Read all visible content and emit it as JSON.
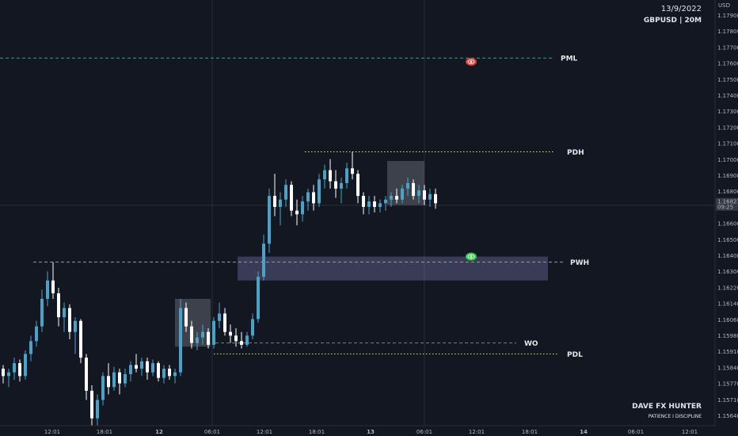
{
  "header": {
    "date": "13/9/2022",
    "symbol": "GBPUSD | 20M"
  },
  "branding": {
    "name": "DAVE FX HUNTER",
    "tagline": "PATIENCE I DISCIPLINE"
  },
  "price_badge": {
    "price": "1.16823",
    "countdown": "09:25"
  },
  "chart_data": {
    "type": "candlestick",
    "ylabel": "USD",
    "ylim": [
      1.1563,
      1.1797
    ],
    "yticks": [
      "1.17900",
      "1.17800",
      "1.17700",
      "1.17600",
      "1.17500",
      "1.17400",
      "1.17300",
      "1.17200",
      "1.17100",
      "1.17000",
      "1.16900",
      "1.16800",
      "1.16700",
      "1.16600",
      "1.16500",
      "1.16400",
      "1.16300",
      "1.16220",
      "1.16140",
      "1.16060",
      "1.15980",
      "1.15910",
      "1.15840",
      "1.15770",
      "1.15710",
      "1.15640"
    ],
    "xticks": [
      "12:01",
      "18:01",
      "12",
      "06:01",
      "12:01",
      "18:01",
      "13",
      "06:01",
      "12:01",
      "18:01",
      "14",
      "06:01",
      "12:01"
    ],
    "levels": [
      {
        "name": "PML",
        "price": 1.1761,
        "color": "#26a69a",
        "style": "dashed"
      },
      {
        "name": "PDH",
        "price": 1.171,
        "color": "#e6e65a",
        "style": "dotted"
      },
      {
        "name": "PWH",
        "price": 1.165,
        "color": "#9598a1",
        "style": "dashed"
      },
      {
        "name": "WO",
        "price": 1.1606,
        "color": "#787b86",
        "style": "dashed"
      },
      {
        "name": "PDL",
        "price": 1.16,
        "color": "#e6e65a",
        "style": "dotted"
      }
    ],
    "zones": [
      {
        "kind": "demand-zone",
        "top": 1.1653,
        "bottom": 1.164,
        "color": "#6a6a9a"
      },
      {
        "kind": "consolidation-box",
        "top": 1.163,
        "bottom": 1.1604,
        "color": "#787b86"
      },
      {
        "kind": "consolidation-box",
        "top": 1.1705,
        "bottom": 1.1681,
        "color": "#787b86"
      }
    ],
    "markers": [
      {
        "icon": "red-eye-icon",
        "price": 1.1759,
        "color": "#e53935"
      },
      {
        "icon": "green-eye-icon",
        "price": 1.1653,
        "color": "#2ecc40"
      }
    ],
    "current_price": 1.16823,
    "candles": [
      [
        1.1592,
        1.1594,
        1.1584,
        1.1588
      ],
      [
        1.1588,
        1.1592,
        1.1582,
        1.159
      ],
      [
        1.159,
        1.1598,
        1.1586,
        1.1595
      ],
      [
        1.1595,
        1.1597,
        1.1585,
        1.1588
      ],
      [
        1.1588,
        1.1602,
        1.1586,
        1.16
      ],
      [
        1.16,
        1.161,
        1.1596,
        1.1607
      ],
      [
        1.1607,
        1.1618,
        1.1604,
        1.1615
      ],
      [
        1.1615,
        1.1635,
        1.1612,
        1.163
      ],
      [
        1.163,
        1.1645,
        1.1626,
        1.164
      ],
      [
        1.164,
        1.165,
        1.163,
        1.1633
      ],
      [
        1.1633,
        1.1636,
        1.1615,
        1.162
      ],
      [
        1.162,
        1.1628,
        1.1612,
        1.1625
      ],
      [
        1.1625,
        1.1627,
        1.1608,
        1.1612
      ],
      [
        1.1612,
        1.162,
        1.16,
        1.1618
      ],
      [
        1.1618,
        1.1619,
        1.1595,
        1.1598
      ],
      [
        1.1598,
        1.16,
        1.1575,
        1.158
      ],
      [
        1.158,
        1.1583,
        1.156,
        1.1565
      ],
      [
        1.1565,
        1.1578,
        1.156,
        1.1575
      ],
      [
        1.1575,
        1.159,
        1.1572,
        1.1588
      ],
      [
        1.1588,
        1.1595,
        1.1578,
        1.1582
      ],
      [
        1.1582,
        1.1593,
        1.158,
        1.159
      ],
      [
        1.159,
        1.1592,
        1.1578,
        1.1584
      ],
      [
        1.1584,
        1.1592,
        1.1582,
        1.1589
      ],
      [
        1.1589,
        1.1596,
        1.1585,
        1.1594
      ],
      [
        1.1594,
        1.16,
        1.159,
        1.1592
      ],
      [
        1.1592,
        1.1598,
        1.1588,
        1.1596
      ],
      [
        1.1596,
        1.1598,
        1.1586,
        1.159
      ],
      [
        1.159,
        1.1597,
        1.1588,
        1.1595
      ],
      [
        1.1595,
        1.1596,
        1.1585,
        1.1587
      ],
      [
        1.1587,
        1.1594,
        1.1584,
        1.1592
      ],
      [
        1.1592,
        1.1594,
        1.1586,
        1.1588
      ],
      [
        1.1588,
        1.1592,
        1.1584,
        1.159
      ],
      [
        1.159,
        1.163,
        1.1588,
        1.1625
      ],
      [
        1.1625,
        1.1628,
        1.1612,
        1.1615
      ],
      [
        1.1615,
        1.1618,
        1.1603,
        1.1606
      ],
      [
        1.1606,
        1.1612,
        1.1602,
        1.1609
      ],
      [
        1.1609,
        1.1616,
        1.1605,
        1.1612
      ],
      [
        1.1612,
        1.1614,
        1.1603,
        1.1605
      ],
      [
        1.1605,
        1.162,
        1.1603,
        1.1618
      ],
      [
        1.1618,
        1.1628,
        1.1614,
        1.1622
      ],
      [
        1.1622,
        1.1625,
        1.161,
        1.1612
      ],
      [
        1.1612,
        1.1616,
        1.1606,
        1.161
      ],
      [
        1.161,
        1.1614,
        1.1604,
        1.1607
      ],
      [
        1.1607,
        1.1612,
        1.1603,
        1.1605
      ],
      [
        1.1605,
        1.1612,
        1.1604,
        1.161
      ],
      [
        1.161,
        1.1622,
        1.1608,
        1.1619
      ],
      [
        1.1619,
        1.1645,
        1.1617,
        1.1642
      ],
      [
        1.1642,
        1.1665,
        1.164,
        1.166
      ],
      [
        1.166,
        1.169,
        1.1655,
        1.1686
      ],
      [
        1.1686,
        1.1698,
        1.1675,
        1.168
      ],
      [
        1.168,
        1.1688,
        1.167,
        1.1684
      ],
      [
        1.1684,
        1.1695,
        1.168,
        1.1692
      ],
      [
        1.1692,
        1.1694,
        1.1675,
        1.1678
      ],
      [
        1.1678,
        1.1684,
        1.167,
        1.1676
      ],
      [
        1.1676,
        1.1686,
        1.1672,
        1.1683
      ],
      [
        1.1683,
        1.169,
        1.1678,
        1.1688
      ],
      [
        1.1688,
        1.1692,
        1.1678,
        1.1682
      ],
      [
        1.1682,
        1.1698,
        1.168,
        1.1695
      ],
      [
        1.1695,
        1.1703,
        1.169,
        1.17
      ],
      [
        1.17,
        1.1706,
        1.169,
        1.1694
      ],
      [
        1.1694,
        1.17,
        1.1685,
        1.169
      ],
      [
        1.169,
        1.1696,
        1.1682,
        1.1693
      ],
      [
        1.1693,
        1.1704,
        1.169,
        1.1701
      ],
      [
        1.1701,
        1.171,
        1.1695,
        1.1698
      ],
      [
        1.1698,
        1.17,
        1.1682,
        1.1686
      ],
      [
        1.1686,
        1.1688,
        1.1676,
        1.168
      ],
      [
        1.168,
        1.1686,
        1.1676,
        1.1683
      ],
      [
        1.1683,
        1.1686,
        1.1677,
        1.168
      ],
      [
        1.168,
        1.1684,
        1.1677,
        1.1682
      ],
      [
        1.1682,
        1.1686,
        1.1678,
        1.1684
      ],
      [
        1.1684,
        1.1688,
        1.168,
        1.1686
      ],
      [
        1.1686,
        1.169,
        1.1682,
        1.1684
      ],
      [
        1.1684,
        1.1692,
        1.1682,
        1.169
      ],
      [
        1.169,
        1.1696,
        1.1686,
        1.1693
      ],
      [
        1.1693,
        1.1695,
        1.1684,
        1.1686
      ],
      [
        1.1686,
        1.1692,
        1.1682,
        1.1689
      ],
      [
        1.1689,
        1.1692,
        1.1681,
        1.1684
      ],
      [
        1.1684,
        1.169,
        1.168,
        1.1687
      ],
      [
        1.1687,
        1.169,
        1.1679,
        1.1682
      ]
    ]
  }
}
